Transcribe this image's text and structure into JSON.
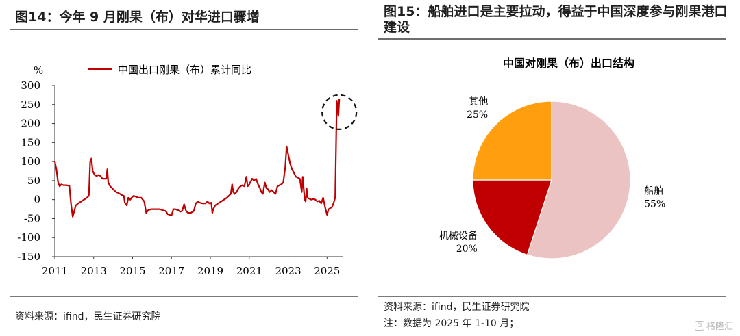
{
  "left": {
    "title": "图14：今年 9 月刚果（布）对华进口骤增",
    "source": "资料来源：ifind，民生证券研究院",
    "chart_data": {
      "type": "line",
      "title": "",
      "ylabel": "%",
      "legend": "中国出口刚果（布）累计同比",
      "legend_position": "top",
      "ylim": [
        -150,
        300
      ],
      "yticks": [
        300,
        250,
        200,
        150,
        100,
        50,
        0,
        -50,
        -100,
        -150
      ],
      "xticks": [
        "2011",
        "2013",
        "2015",
        "2017",
        "2019",
        "2021",
        "2023",
        "2025"
      ],
      "xlim": [
        2011,
        2025.8
      ],
      "color": "#c00000",
      "annotation": "dashed circle highlighting the 2025 spike",
      "series": [
        {
          "points": [
            [
              2011.0,
              100
            ],
            [
              2011.08,
              80
            ],
            [
              2011.17,
              45
            ],
            [
              2011.25,
              35
            ],
            [
              2011.33,
              40
            ],
            [
              2011.45,
              38
            ],
            [
              2011.6,
              38
            ],
            [
              2011.75,
              36
            ],
            [
              2011.83,
              -10
            ],
            [
              2011.92,
              -45
            ],
            [
              2012.0,
              -30
            ],
            [
              2012.08,
              -15
            ],
            [
              2012.2,
              -10
            ],
            [
              2012.35,
              -5
            ],
            [
              2012.5,
              0
            ],
            [
              2012.65,
              5
            ],
            [
              2012.75,
              10
            ],
            [
              2012.82,
              100
            ],
            [
              2012.88,
              108
            ],
            [
              2012.95,
              75
            ],
            [
              2013.05,
              65
            ],
            [
              2013.15,
              62
            ],
            [
              2013.25,
              65
            ],
            [
              2013.35,
              62
            ],
            [
              2013.45,
              55
            ],
            [
              2013.55,
              55
            ],
            [
              2013.65,
              55
            ],
            [
              2013.7,
              80
            ],
            [
              2013.75,
              45
            ],
            [
              2013.85,
              35
            ],
            [
              2013.95,
              30
            ],
            [
              2014.05,
              25
            ],
            [
              2014.15,
              20
            ],
            [
              2014.25,
              18
            ],
            [
              2014.35,
              15
            ],
            [
              2014.45,
              12
            ],
            [
              2014.55,
              10
            ],
            [
              2014.6,
              -8
            ],
            [
              2014.7,
              -15
            ],
            [
              2014.78,
              5
            ],
            [
              2014.88,
              0
            ],
            [
              2014.95,
              5
            ],
            [
              2015.05,
              10
            ],
            [
              2015.15,
              8
            ],
            [
              2015.3,
              5
            ],
            [
              2015.45,
              5
            ],
            [
              2015.6,
              -5
            ],
            [
              2015.7,
              -35
            ],
            [
              2015.8,
              -28
            ],
            [
              2015.95,
              -25
            ],
            [
              2016.1,
              -25
            ],
            [
              2016.25,
              -25
            ],
            [
              2016.4,
              -25
            ],
            [
              2016.55,
              -28
            ],
            [
              2016.7,
              -30
            ],
            [
              2016.8,
              -38
            ],
            [
              2016.9,
              -40
            ],
            [
              2017.0,
              -42
            ],
            [
              2017.1,
              -25
            ],
            [
              2017.2,
              -25
            ],
            [
              2017.35,
              -28
            ],
            [
              2017.45,
              -32
            ],
            [
              2017.55,
              -30
            ],
            [
              2017.65,
              -12
            ],
            [
              2017.75,
              -30
            ],
            [
              2017.85,
              -35
            ],
            [
              2018.0,
              -35
            ],
            [
              2018.15,
              -30
            ],
            [
              2018.25,
              -10
            ],
            [
              2018.35,
              -5
            ],
            [
              2018.45,
              -8
            ],
            [
              2018.6,
              -10
            ],
            [
              2018.75,
              -10
            ],
            [
              2018.85,
              -5
            ],
            [
              2018.95,
              -10
            ],
            [
              2019.05,
              -8
            ],
            [
              2019.1,
              -35
            ],
            [
              2019.15,
              -25
            ],
            [
              2019.25,
              -15
            ],
            [
              2019.4,
              -10
            ],
            [
              2019.55,
              -5
            ],
            [
              2019.7,
              0
            ],
            [
              2019.85,
              5
            ],
            [
              2019.95,
              10
            ],
            [
              2020.05,
              15
            ],
            [
              2020.12,
              40
            ],
            [
              2020.18,
              20
            ],
            [
              2020.25,
              15
            ],
            [
              2020.35,
              20
            ],
            [
              2020.45,
              30
            ],
            [
              2020.55,
              35
            ],
            [
              2020.65,
              38
            ],
            [
              2020.75,
              35
            ],
            [
              2020.85,
              60
            ],
            [
              2020.92,
              35
            ],
            [
              2021.0,
              40
            ],
            [
              2021.15,
              55
            ],
            [
              2021.25,
              50
            ],
            [
              2021.35,
              55
            ],
            [
              2021.45,
              40
            ],
            [
              2021.55,
              30
            ],
            [
              2021.62,
              20
            ],
            [
              2021.7,
              15
            ],
            [
              2021.8,
              45
            ],
            [
              2021.88,
              30
            ],
            [
              2021.95,
              28
            ],
            [
              2022.05,
              20
            ],
            [
              2022.15,
              25
            ],
            [
              2022.25,
              20
            ],
            [
              2022.35,
              15
            ],
            [
              2022.45,
              35
            ],
            [
              2022.55,
              38
            ],
            [
              2022.65,
              40
            ],
            [
              2022.75,
              45
            ],
            [
              2022.85,
              85
            ],
            [
              2022.92,
              140
            ],
            [
              2023.0,
              120
            ],
            [
              2023.1,
              95
            ],
            [
              2023.2,
              80
            ],
            [
              2023.3,
              70
            ],
            [
              2023.4,
              60
            ],
            [
              2023.5,
              58
            ],
            [
              2023.6,
              55
            ],
            [
              2023.7,
              20
            ],
            [
              2023.75,
              60
            ],
            [
              2023.8,
              30
            ],
            [
              2023.85,
              0
            ],
            [
              2023.9,
              -5
            ],
            [
              2023.95,
              30
            ],
            [
              2024.0,
              5
            ],
            [
              2024.1,
              2
            ],
            [
              2024.2,
              0
            ],
            [
              2024.3,
              2
            ],
            [
              2024.4,
              0
            ],
            [
              2024.5,
              -5
            ],
            [
              2024.6,
              -3
            ],
            [
              2024.7,
              -10
            ],
            [
              2024.8,
              5
            ],
            [
              2024.9,
              -20
            ],
            [
              2025.0,
              -40
            ],
            [
              2025.08,
              -25
            ],
            [
              2025.17,
              -22
            ],
            [
              2025.25,
              -20
            ],
            [
              2025.33,
              -10
            ],
            [
              2025.42,
              5
            ],
            [
              2025.5,
              260
            ],
            [
              2025.58,
              220
            ],
            [
              2025.63,
              265
            ]
          ]
        }
      ]
    }
  },
  "right": {
    "title": "图15：船舶进口是主要拉动，得益于中国深度参与刚果港口建设",
    "source": "资料来源：ifind，民生证券研究院",
    "note": "注：数据为 2025 年 1-10 月；",
    "chart_data": {
      "type": "pie",
      "title": "中国对刚果（布）出口结构",
      "slices": [
        {
          "label": "船舶",
          "value": 55,
          "value_label": "55%",
          "color": "#ecc3c3"
        },
        {
          "label": "机械设备",
          "value": 20,
          "value_label": "20%",
          "color": "#c00000"
        },
        {
          "label": "其他",
          "value": 25,
          "value_label": "25%",
          "color": "#ff9f0f"
        }
      ]
    }
  },
  "watermark": {
    "icon": "gelonghui-logo-icon",
    "text": "格隆汇"
  }
}
